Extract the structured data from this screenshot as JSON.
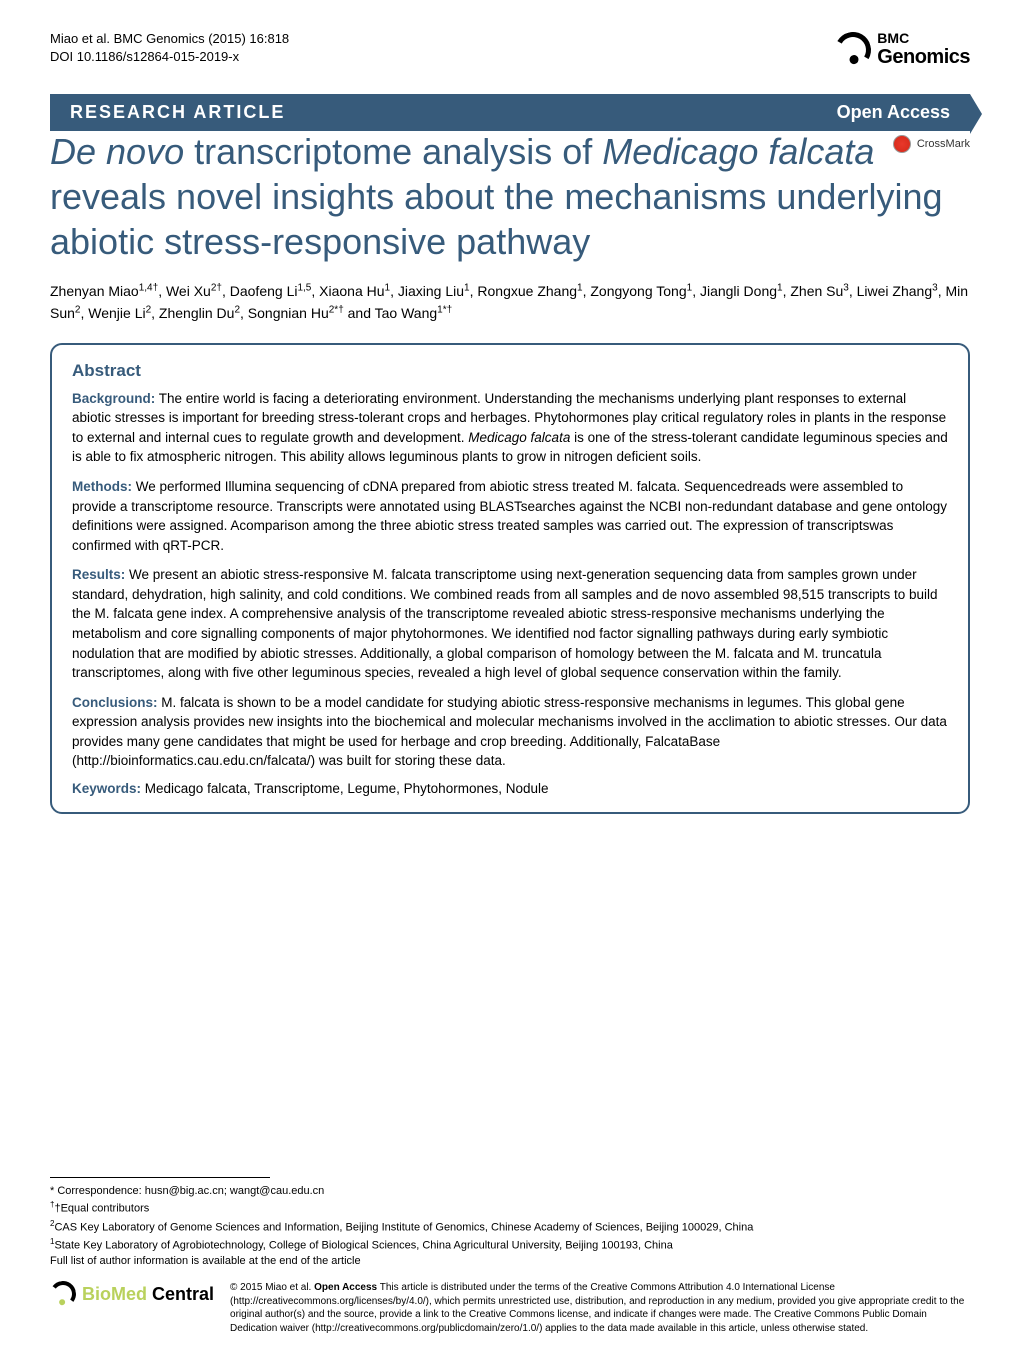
{
  "header": {
    "citation_line1": "Miao et al. BMC Genomics  (2015) 16:818",
    "citation_line2": "DOI 10.1186/s12864-015-2019-x",
    "journal_prefix": "BMC",
    "journal_name": "Genomics"
  },
  "banner": {
    "left": "RESEARCH ARTICLE",
    "right": "Open Access"
  },
  "crossmark": {
    "label": "CrossMark"
  },
  "title": {
    "prefix_italic": "De novo",
    "mid1": " transcriptome analysis of ",
    "species_italic": "Medicago falcata",
    "rest": " reveals novel insights about the mechanisms underlying abiotic stress-responsive pathway"
  },
  "authors_html": "Zhenyan Miao<sup>1,4†</sup>, Wei Xu<sup>2†</sup>, Daofeng Li<sup>1,5</sup>, Xiaona Hu<sup>1</sup>, Jiaxing Liu<sup>1</sup>, Rongxue Zhang<sup>1</sup>, Zongyong Tong<sup>1</sup>, Jiangli Dong<sup>1</sup>, Zhen Su<sup>3</sup>, Liwei Zhang<sup>3</sup>, Min Sun<sup>2</sup>, Wenjie Li<sup>2</sup>, Zhenglin Du<sup>2</sup>, Songnian Hu<sup>2*†</sup> and Tao Wang<sup>1*†</sup>",
  "abstract": {
    "heading": "Abstract",
    "background": {
      "label": "Background:",
      "text": " The entire world is facing a deteriorating environment. Understanding the mechanisms underlying plant responses to external abiotic stresses is important for breeding stress-tolerant crops and herbages. Phytohormones play critical regulatory roles in plants in the response to external and internal cues to regulate growth and development. ",
      "italic": "Medicago falcata",
      "text2": " is one of the stress-tolerant candidate leguminous species and is able to fix atmospheric nitrogen. This ability allows leguminous plants to grow in nitrogen deficient soils."
    },
    "methods": {
      "label": "Methods:",
      "text": " We performed Illumina sequencing of cDNA prepared from abiotic stress treated M. falcata. Sequencedreads were assembled to provide a transcriptome resource. Transcripts were annotated using BLASTsearches against the NCBI non-redundant database and gene ontology definitions were assigned. Acomparison among the three abiotic stress treated samples was carried out. The expression of transcriptswas confirmed with qRT-PCR."
    },
    "results": {
      "label": "Results:",
      "text": " We present an abiotic stress-responsive M. falcata transcriptome using next-generation sequencing data from samples grown under standard, dehydration, high salinity, and cold conditions. We combined reads from all samples and de novo assembled 98,515 transcripts to build the M. falcata gene index. A comprehensive analysis of the transcriptome revealed abiotic stress-responsive mechanisms underlying the metabolism and core signalling components of major phytohormones. We identified nod factor signalling pathways during early symbiotic nodulation that are modified by abiotic stresses. Additionally, a global comparison of homology between the M. falcata and M. truncatula transcriptomes, along with five other leguminous species, revealed a high level of global sequence conservation within the family."
    },
    "conclusions": {
      "label": "Conclusions:",
      "text": " M. falcata is shown to be a model candidate for studying abiotic stress-responsive mechanisms in legumes. This global gene expression analysis provides new insights into the biochemical and molecular mechanisms involved in the acclimation to abiotic stresses. Our data provides many gene candidates that might be used for herbage and crop breeding. Additionally, FalcataBase (http://bioinformatics.cau.edu.cn/falcata/) was built for storing these data."
    },
    "keywords": {
      "label": "Keywords:",
      "text": " Medicago falcata, Transcriptome, Legume, Phytohormones, Nodule"
    }
  },
  "footer": {
    "correspondence": "* Correspondence: husn@big.ac.cn; wangt@cau.edu.cn",
    "equal": "†Equal contributors",
    "aff2": "2CAS Key Laboratory of Genome Sciences and Information, Beijing Institute of Genomics, Chinese Academy of Sciences, Beijing 100029, China",
    "aff1": "1State Key Laboratory of Agrobiotechnology, College of Biological Sciences, China Agricultural University, Beijing 100193, China",
    "full_list": "Full list of author information is available at the end of the article",
    "logo_bio": "BioMed",
    "logo_central": " Central",
    "license": "© 2015 Miao et al. <b>Open Access</b> This article is distributed under the terms of the Creative Commons Attribution 4.0 International License (http://creativecommons.org/licenses/by/4.0/), which permits unrestricted use, distribution, and reproduction in any medium, provided you give appropriate credit to the original author(s) and the source, provide a link to the Creative Commons license, and indicate if changes were made. The Creative Commons Public Domain Dedication waiver (http://creativecommons.org/publicdomain/zero/1.0/) applies to the data made available in this article, unless otherwise stated."
  },
  "colors": {
    "brand": "#375b7b",
    "green": "#b9d15d",
    "red": "#e8382b"
  }
}
